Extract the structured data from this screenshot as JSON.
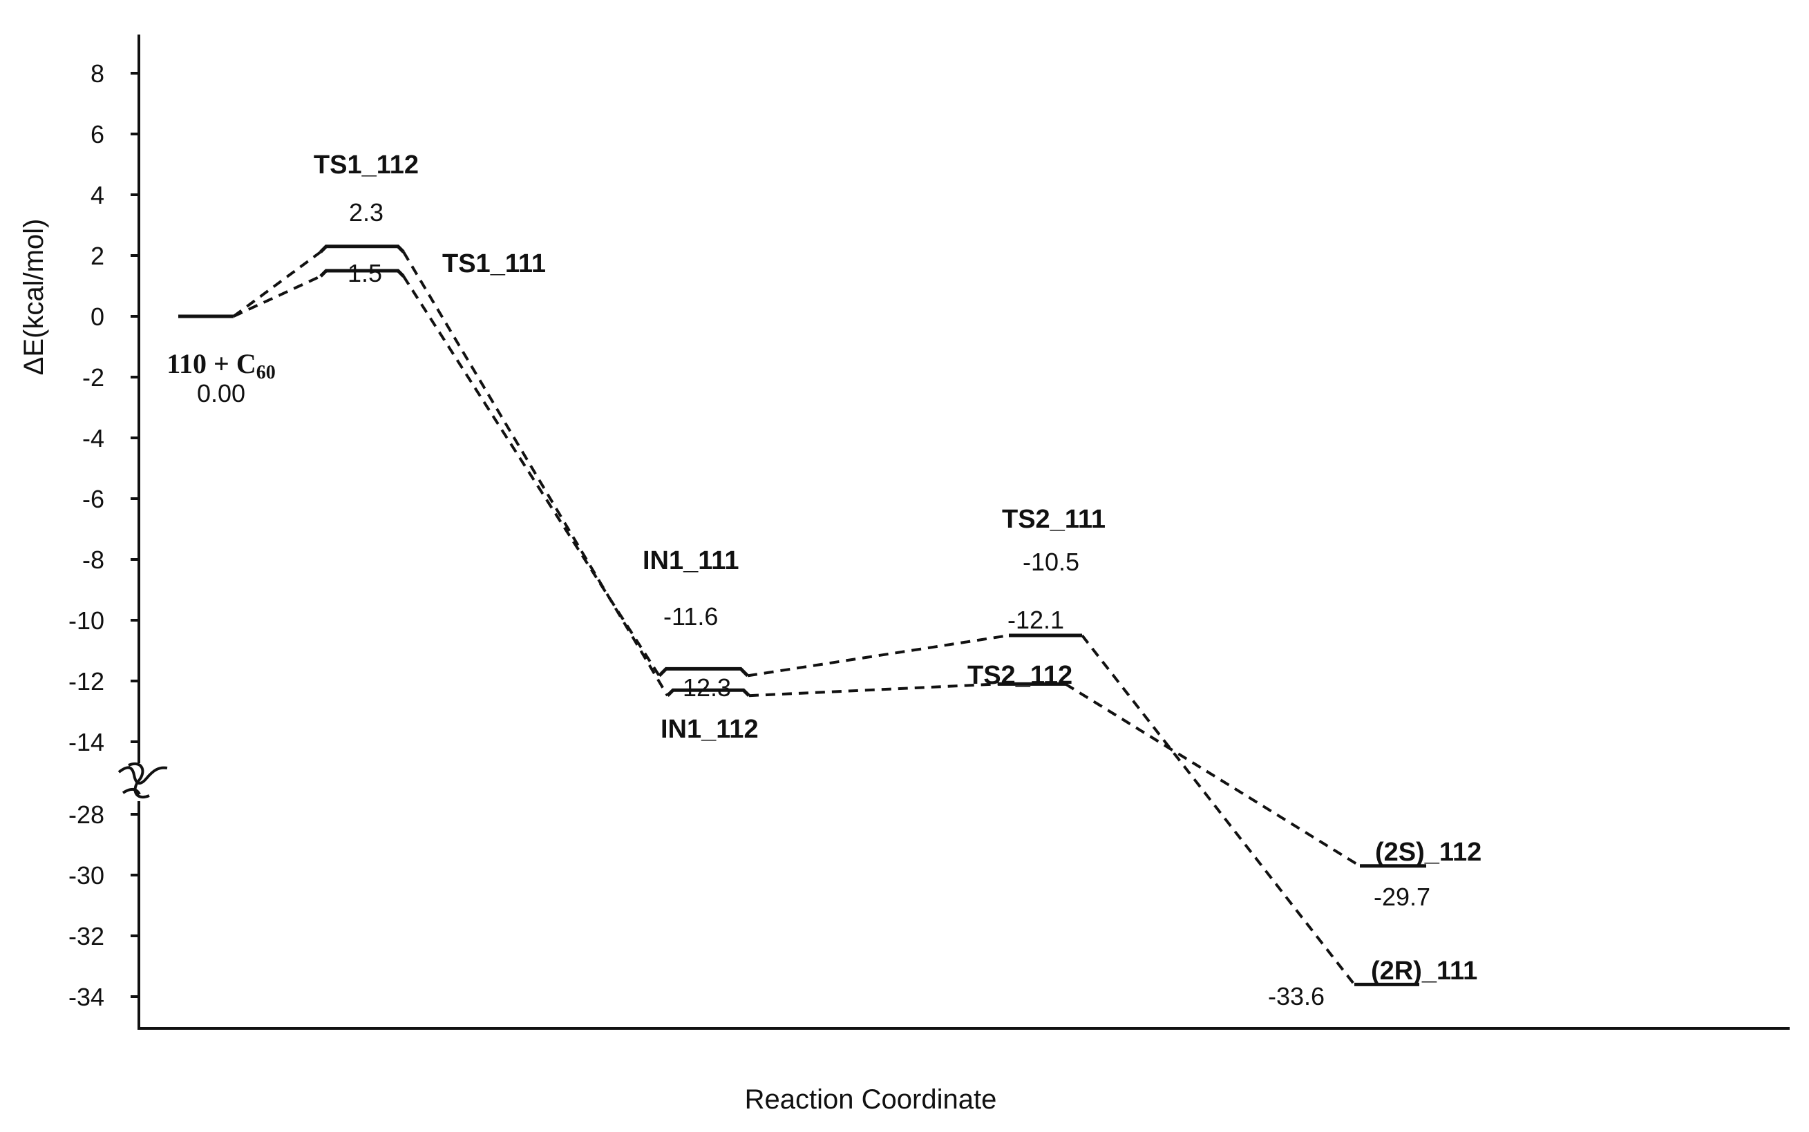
{
  "chart_data": {
    "type": "line",
    "title": "",
    "xlabel": "Reaction Coordinate",
    "ylabel": "ΔE(kcal/mol)",
    "axis_break": {
      "between": [
        -14,
        -28
      ]
    },
    "y_ticks_upper": [
      "8",
      "6",
      "4",
      "2",
      "0",
      "-2",
      "-4",
      "-6",
      "-8",
      "-10",
      "-12",
      "-14"
    ],
    "y_ticks_lower": [
      "-28",
      "-30",
      "-32",
      "-34"
    ],
    "states": [
      {
        "id": "reactant",
        "name": "110 + C",
        "name_sub": "60",
        "energy": 0.0,
        "value_label": "0.00"
      },
      {
        "id": "ts1_112",
        "name": "TS1_112",
        "energy": 2.3,
        "value_label": "2.3"
      },
      {
        "id": "ts1_111",
        "name": "TS1_111",
        "energy": 1.5,
        "value_label": "1.5"
      },
      {
        "id": "in1_111",
        "name": "IN1_111",
        "energy": -11.6,
        "value_label": "-11.6"
      },
      {
        "id": "in1_112",
        "name": "IN1_112",
        "energy": -12.3,
        "value_label": "-12.3"
      },
      {
        "id": "ts2_111",
        "name": "TS2_111",
        "energy": -10.5,
        "value_label": "-10.5"
      },
      {
        "id": "ts2_112",
        "name": "TS2_112",
        "energy": -12.1,
        "value_label": "-12.1"
      },
      {
        "id": "p_2s_112",
        "name": "(2S)_112",
        "energy": -29.7,
        "value_label": "-29.7"
      },
      {
        "id": "p_2r_111",
        "name": "(2R)_111",
        "energy": -33.6,
        "value_label": "-33.6"
      }
    ],
    "series": [
      {
        "pathway": "111",
        "states": [
          "reactant",
          "ts1_111",
          "in1_111",
          "ts2_111",
          "p_2r_111"
        ]
      },
      {
        "pathway": "112",
        "states": [
          "reactant",
          "ts1_112",
          "in1_112",
          "ts2_112",
          "p_2s_112"
        ]
      }
    ]
  }
}
